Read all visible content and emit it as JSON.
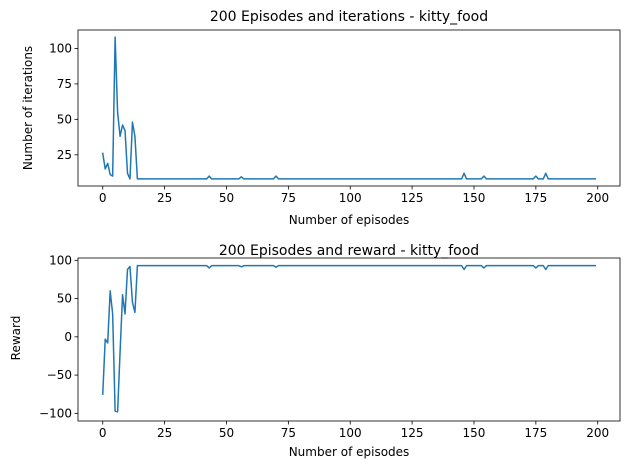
{
  "chart_data": [
    {
      "type": "line",
      "title": "200 Episodes and iterations - kitty_food",
      "xlabel": "Number of episodes",
      "ylabel": "Number of iterations",
      "xlim": [
        -10,
        209
      ],
      "ylim": [
        3,
        113
      ],
      "xticks": [
        0,
        25,
        50,
        75,
        100,
        125,
        150,
        175,
        200
      ],
      "yticks": [
        25,
        50,
        75,
        100
      ],
      "color": "#1f77b4",
      "series": [
        {
          "points": [
            [
              0,
              26
            ],
            [
              1,
              15
            ],
            [
              2,
              19
            ],
            [
              3,
              11
            ],
            [
              4,
              10
            ],
            [
              5,
              108
            ],
            [
              6,
              55
            ],
            [
              7,
              38
            ],
            [
              8,
              46
            ],
            [
              9,
              42
            ],
            [
              10,
              12
            ],
            [
              11,
              8
            ],
            [
              12,
              48
            ],
            [
              13,
              38
            ],
            [
              14,
              8
            ],
            [
              42,
              8
            ],
            [
              43,
              10
            ],
            [
              44,
              8
            ],
            [
              55,
              8
            ],
            [
              56,
              9.5
            ],
            [
              57,
              8
            ],
            [
              69,
              8
            ],
            [
              70,
              10
            ],
            [
              71,
              8
            ],
            [
              145,
              8
            ],
            [
              146,
              12
            ],
            [
              147,
              8
            ],
            [
              153,
              8
            ],
            [
              154,
              10
            ],
            [
              155,
              8
            ],
            [
              174,
              8
            ],
            [
              175,
              10
            ],
            [
              176,
              8
            ],
            [
              178,
              8
            ],
            [
              179,
              12
            ],
            [
              180,
              8
            ],
            [
              199,
              8
            ]
          ]
        }
      ]
    },
    {
      "type": "line",
      "title": "200 Episodes and reward - kitty_food",
      "xlabel": "Number of episodes",
      "ylabel": "Reward",
      "xlim": [
        -10,
        209
      ],
      "ylim": [
        -110,
        103
      ],
      "xticks": [
        0,
        25,
        50,
        75,
        100,
        125,
        150,
        175,
        200
      ],
      "yticks": [
        -100,
        -50,
        0,
        50,
        100
      ],
      "color": "#1f77b4",
      "series": [
        {
          "points": [
            [
              0,
              -75
            ],
            [
              1,
              -3
            ],
            [
              2,
              -8
            ],
            [
              3,
              60
            ],
            [
              4,
              30
            ],
            [
              5,
              -97
            ],
            [
              6,
              -98
            ],
            [
              7,
              -20
            ],
            [
              8,
              55
            ],
            [
              9,
              30
            ],
            [
              10,
              88
            ],
            [
              11,
              92
            ],
            [
              12,
              45
            ],
            [
              13,
              32
            ],
            [
              14,
              93
            ],
            [
              42,
              93
            ],
            [
              43,
              90
            ],
            [
              44,
              93
            ],
            [
              55,
              93
            ],
            [
              56,
              91.5
            ],
            [
              57,
              93
            ],
            [
              69,
              93
            ],
            [
              70,
              91
            ],
            [
              71,
              93
            ],
            [
              145,
              93
            ],
            [
              146,
              88
            ],
            [
              147,
              93
            ],
            [
              153,
              93
            ],
            [
              154,
              90
            ],
            [
              155,
              93
            ],
            [
              174,
              93
            ],
            [
              175,
              90
            ],
            [
              176,
              93
            ],
            [
              178,
              93
            ],
            [
              179,
              88
            ],
            [
              180,
              93
            ],
            [
              199,
              93
            ]
          ]
        }
      ]
    }
  ]
}
